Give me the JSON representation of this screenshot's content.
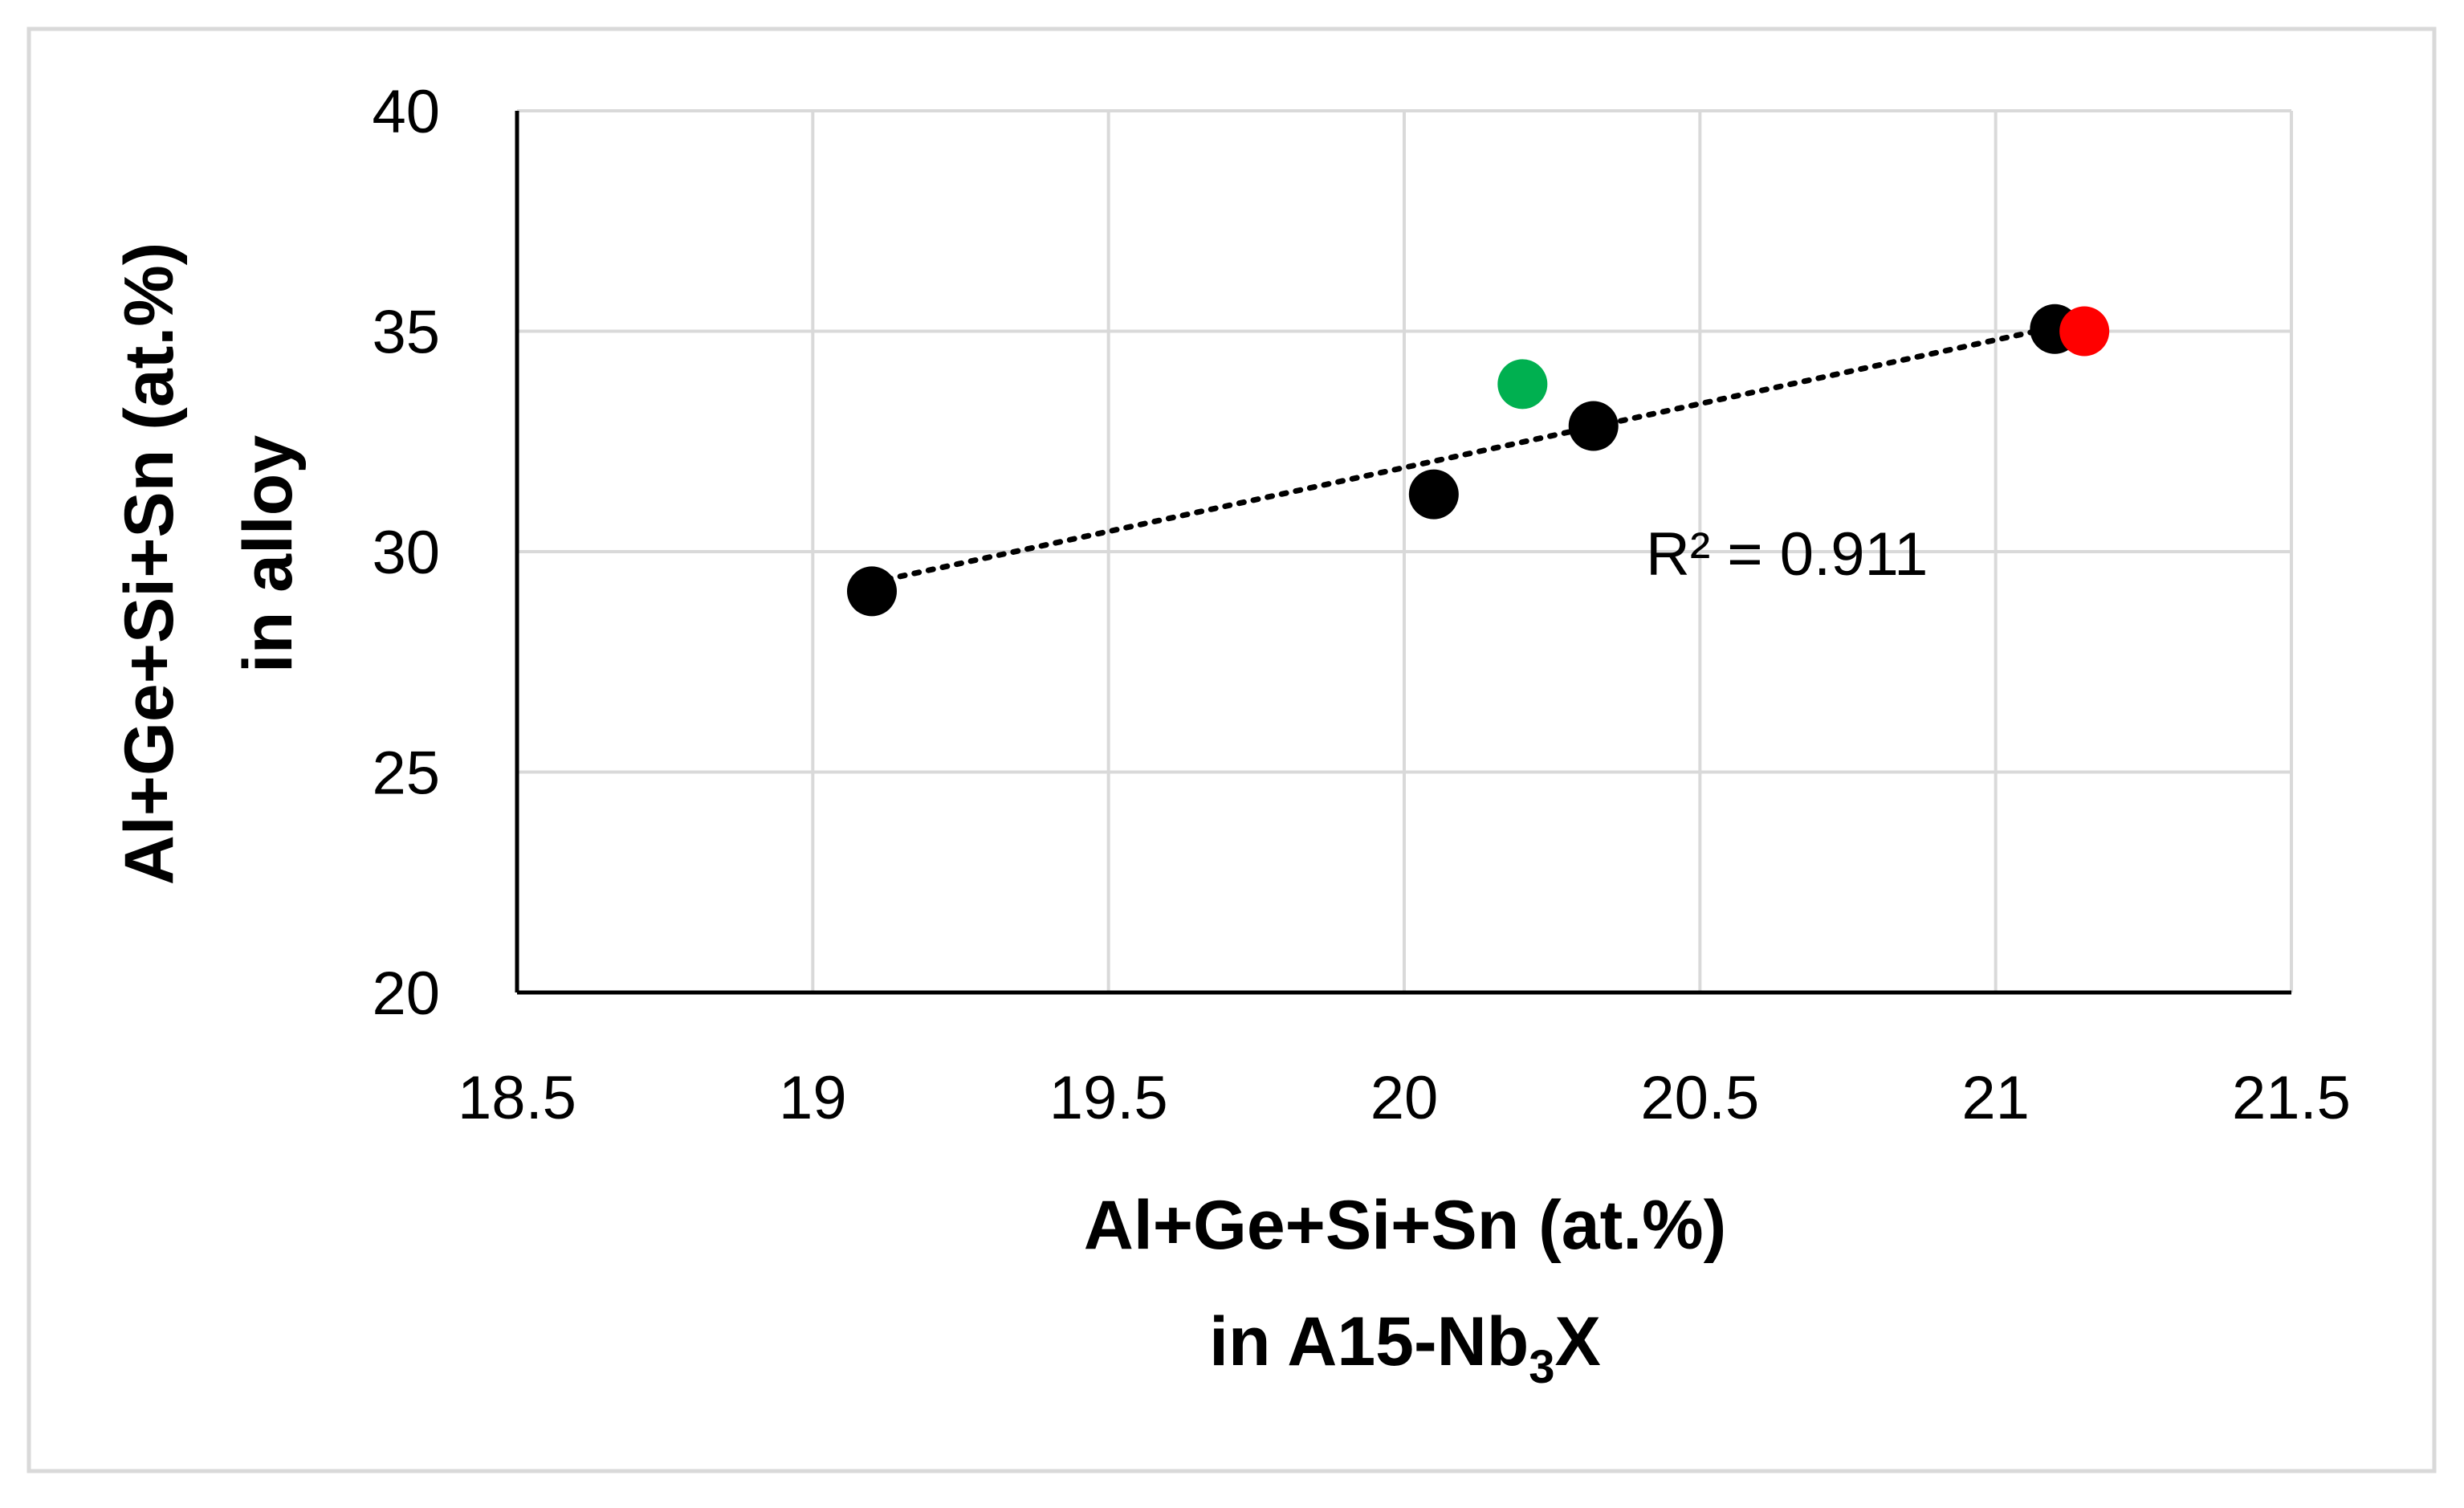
{
  "chart_data": {
    "type": "scatter",
    "xlabel_lines": [
      "Al+Ge+Si+Sn (at.%)",
      "in A15-Nb",
      "3",
      "X"
    ],
    "ylabel_lines": [
      "Al+Ge+Si+Sn (at.%)",
      "in alloy"
    ],
    "xlim": [
      18.5,
      21.5
    ],
    "ylim": [
      20,
      40
    ],
    "xticks": [
      "18.5",
      "19",
      "19.5",
      "20",
      "20.5",
      "21",
      "21.5"
    ],
    "yticks": [
      "20",
      "25",
      "30",
      "35",
      "40"
    ],
    "grid": true,
    "legend": "none",
    "points": [
      {
        "x": 19.1,
        "y": 29.1,
        "color": "#000000"
      },
      {
        "x": 20.05,
        "y": 31.3,
        "color": "#000000"
      },
      {
        "x": 20.32,
        "y": 32.85,
        "color": "#000000"
      },
      {
        "x": 21.1,
        "y": 35.05,
        "color": "#000000"
      },
      {
        "x": 20.2,
        "y": 33.8,
        "color": "#00b050"
      },
      {
        "x": 21.15,
        "y": 35.0,
        "color": "#ff0000"
      }
    ],
    "trendline": {
      "x_start": 19.1,
      "y_start": 29.3,
      "x_end": 21.12,
      "y_end": 35.15,
      "style": "dotted",
      "color": "#000000"
    },
    "annotation": "R² = 0.911"
  }
}
